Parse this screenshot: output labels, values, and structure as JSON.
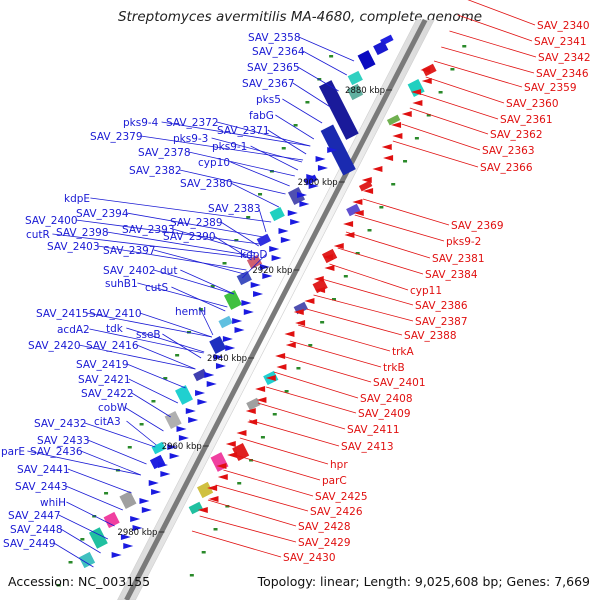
{
  "title": "Streptomyces avermitilis MA-4680, complete genome",
  "footer": {
    "accession": "Accession: NC_003155",
    "topology": "Topology: linear; Length: 9,025,608 bp; Genes: 7,669"
  },
  "colors": {
    "left_labels": "#1a1ad4",
    "right_labels": "#e01010",
    "backbone": "#7a7a7a"
  },
  "ruler_marks": [
    "2880 kbp",
    "2900 kbp",
    "2920 kbp",
    "2940 kbp",
    "2960 kbp",
    "2980 kbp"
  ],
  "left_labels": [
    "SAV_2358",
    "SAV_2364",
    "SAV_2365",
    "SAV_2367",
    "pks5",
    "fabG",
    "pks9-4",
    "SAV_2372",
    "SAV_2371",
    "SAV_2379",
    "pks9-3",
    "pks9-1",
    "SAV_2378",
    "cyp10",
    "SAV_2382",
    "SAV_2380",
    "kdpE",
    "SAV_2394",
    "SAV_2383",
    "SAV_2400",
    "SAV_2393",
    "SAV_2389",
    "cutR",
    "SAV_2398",
    "SAV_2390",
    "SAV_2403",
    "SAV_2397",
    "kdpD",
    "SAV_2402",
    "dut",
    "suhB1",
    "cutS",
    "hemH",
    "SAV_2415",
    "SAV_2410",
    "tdk",
    "acdA2",
    "sseB",
    "SAV_2420",
    "SAV_2416",
    "SAV_2419",
    "SAV_2421",
    "SAV_2422",
    "cobW",
    "citA3",
    "SAV_2432",
    "SAV_2433",
    "parE",
    "SAV_2436",
    "SAV_2441",
    "SAV_2443",
    "whiH",
    "SAV_2447",
    "SAV_2448",
    "SAV_2449"
  ],
  "right_labels": [
    "SAV_2340",
    "SAV_2341",
    "SAV_2342",
    "SAV_2346",
    "SAV_2359",
    "SAV_2360",
    "SAV_2361",
    "SAV_2362",
    "SAV_2363",
    "SAV_2366",
    "SAV_2369",
    "pks9-2",
    "SAV_2381",
    "SAV_2384",
    "cyp11",
    "SAV_2386",
    "SAV_2387",
    "SAV_2388",
    "trkA",
    "trkB",
    "SAV_2401",
    "SAV_2408",
    "SAV_2409",
    "SAV_2411",
    "SAV_2413",
    "hpr",
    "parC",
    "SAV_2425",
    "SAV_2426",
    "SAV_2428",
    "SAV_2429",
    "SAV_2430"
  ]
}
